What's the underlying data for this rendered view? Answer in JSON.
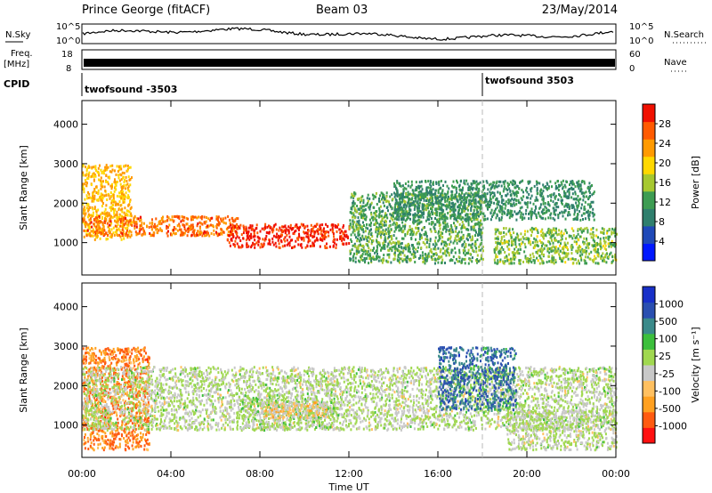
{
  "header": {
    "station": "Prince George (fitACF)",
    "beam": "Beam 03",
    "date": "23/May/2014"
  },
  "colors": {
    "power_scale": [
      "#0018ff",
      "#1f49b8",
      "#2f7f6d",
      "#3d9c52",
      "#a6c830",
      "#ffd800",
      "#ff9a00",
      "#ff5a00",
      "#f01000"
    ],
    "velocity_scale": [
      "#ff1010",
      "#ff5a10",
      "#ffa020",
      "#ffc060",
      "#c8c8c8",
      "#a0d850",
      "#3cbf3c",
      "#3a8a8a",
      "#2a4fb0",
      "#1830c8"
    ],
    "trace": "#000000"
  },
  "panels": {
    "nsky": {
      "label_top": "N.Sky",
      "scale_left": [
        "10^5",
        "10^0"
      ],
      "label_right": "N.Search",
      "scale_right": [
        "10^5",
        "10^0"
      ]
    },
    "freq": {
      "label_top": "Freq.",
      "label_unit": "[MHz]",
      "scale_left": [
        "18",
        "8"
      ],
      "label_right": "Nave",
      "scale_right": [
        "60",
        "0"
      ]
    },
    "cpid": {
      "label": "CPID",
      "programs": [
        {
          "name": "twofsound -3503",
          "start_hour": 0.0
        },
        {
          "name": "twofsound 3503",
          "start_hour": 18.0
        }
      ]
    }
  },
  "chart_data": [
    {
      "type": "heatmap",
      "title": "",
      "ylabel": "Slant Range [km]",
      "xlabel": "",
      "yticks": [
        "1000",
        "2000",
        "3000",
        "4000"
      ],
      "ylim": [
        180,
        4600
      ],
      "xlim_hours": [
        0,
        24
      ],
      "colorbar_label": "Power [dB]",
      "colorbar_ticks": [
        "4",
        "8",
        "12",
        "16",
        "20",
        "24",
        "28"
      ],
      "colorbar_range": [
        0,
        30
      ],
      "echo_regions": [
        {
          "t_start": 0.0,
          "t_end": 2.2,
          "range_km": [
            1100,
            3000
          ],
          "value": 20
        },
        {
          "t_start": 0.0,
          "t_end": 7.0,
          "range_km": [
            1200,
            1700
          ],
          "value": 24
        },
        {
          "t_start": 6.5,
          "t_end": 12.0,
          "range_km": [
            900,
            1500
          ],
          "value": 28
        },
        {
          "t_start": 12.0,
          "t_end": 18.0,
          "range_km": [
            500,
            2300
          ],
          "value": 12
        },
        {
          "t_start": 14.0,
          "t_end": 23.0,
          "range_km": [
            1600,
            2600
          ],
          "value": 10
        },
        {
          "t_start": 18.5,
          "t_end": 24.0,
          "range_km": [
            500,
            1400
          ],
          "value": 14
        }
      ]
    },
    {
      "type": "heatmap",
      "title": "",
      "ylabel": "Slant Range [km]",
      "xlabel": "Time UT",
      "xticks": [
        "00:00",
        "04:00",
        "08:00",
        "12:00",
        "16:00",
        "20:00",
        "00:00"
      ],
      "yticks": [
        "1000",
        "2000",
        "3000",
        "4000"
      ],
      "ylim": [
        180,
        4600
      ],
      "xlim_hours": [
        0,
        24
      ],
      "colorbar_label": "Velocity [m s⁻¹]",
      "colorbar_ticks": [
        "-1000",
        "-500",
        "-100",
        "-25",
        "25",
        "100",
        "500",
        "1000"
      ],
      "colorbar_range": [
        -1200,
        1200
      ],
      "echo_regions": [
        {
          "t_start": 0.0,
          "t_end": 3.0,
          "range_km": [
            400,
            3000
          ],
          "value": -700
        },
        {
          "t_start": 0.0,
          "t_end": 24.0,
          "range_km": [
            900,
            2500
          ],
          "value": 0
        },
        {
          "t_start": 7.0,
          "t_end": 11.5,
          "range_km": [
            900,
            1700
          ],
          "value": 60
        },
        {
          "t_start": 8.0,
          "t_end": 11.0,
          "range_km": [
            1200,
            1600
          ],
          "value": -300
        },
        {
          "t_start": 16.0,
          "t_end": 19.5,
          "range_km": [
            1400,
            3000
          ],
          "value": 700
        },
        {
          "t_start": 19.0,
          "t_end": 24.0,
          "range_km": [
            400,
            1400
          ],
          "value": 0
        }
      ]
    }
  ]
}
